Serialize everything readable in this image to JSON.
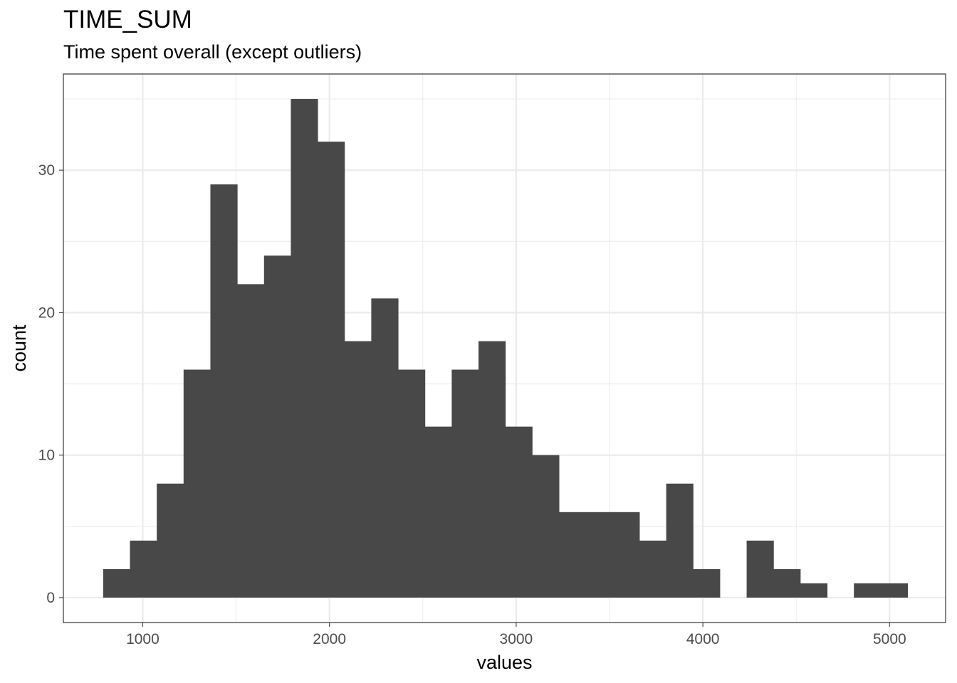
{
  "chart_data": {
    "type": "bar",
    "title": "TIME_SUM",
    "subtitle": "Time spent overall (except outliers)",
    "xlabel": "values",
    "ylabel": "count",
    "xlim": [
      575,
      5300
    ],
    "ylim": [
      -1.75,
      36.75
    ],
    "x_ticks": [
      1000,
      2000,
      3000,
      4000,
      5000
    ],
    "y_ticks": [
      0,
      10,
      20,
      30
    ],
    "grid": true,
    "bin_width": 143.6,
    "bins": [
      {
        "x0": 788,
        "x1": 931.6,
        "count": 2
      },
      {
        "x0": 931.6,
        "x1": 1075.2,
        "count": 4
      },
      {
        "x0": 1075.2,
        "x1": 1218.8,
        "count": 8
      },
      {
        "x0": 1218.8,
        "x1": 1362.4,
        "count": 16
      },
      {
        "x0": 1362.4,
        "x1": 1506,
        "count": 29
      },
      {
        "x0": 1506,
        "x1": 1649.6,
        "count": 22
      },
      {
        "x0": 1649.6,
        "x1": 1793.2,
        "count": 24
      },
      {
        "x0": 1793.2,
        "x1": 1936.8,
        "count": 35
      },
      {
        "x0": 1936.8,
        "x1": 2080.4,
        "count": 32
      },
      {
        "x0": 2080.4,
        "x1": 2224,
        "count": 18
      },
      {
        "x0": 2224,
        "x1": 2367.6,
        "count": 21
      },
      {
        "x0": 2367.6,
        "x1": 2511.2,
        "count": 16
      },
      {
        "x0": 2511.2,
        "x1": 2654.8,
        "count": 12
      },
      {
        "x0": 2654.8,
        "x1": 2798.4,
        "count": 16
      },
      {
        "x0": 2798.4,
        "x1": 2942,
        "count": 18
      },
      {
        "x0": 2942,
        "x1": 3085.6,
        "count": 12
      },
      {
        "x0": 3085.6,
        "x1": 3229.2,
        "count": 10
      },
      {
        "x0": 3229.2,
        "x1": 3372.8,
        "count": 6
      },
      {
        "x0": 3372.8,
        "x1": 3516.4,
        "count": 6
      },
      {
        "x0": 3516.4,
        "x1": 3660,
        "count": 6
      },
      {
        "x0": 3660,
        "x1": 3803.6,
        "count": 4
      },
      {
        "x0": 3803.6,
        "x1": 3947.2,
        "count": 8
      },
      {
        "x0": 3947.2,
        "x1": 4090.8,
        "count": 2
      },
      {
        "x0": 4090.8,
        "x1": 4234.4,
        "count": 0
      },
      {
        "x0": 4234.4,
        "x1": 4378,
        "count": 4
      },
      {
        "x0": 4378,
        "x1": 4521.6,
        "count": 2
      },
      {
        "x0": 4521.6,
        "x1": 4665.2,
        "count": 1
      },
      {
        "x0": 4665.2,
        "x1": 4808.8,
        "count": 0
      },
      {
        "x0": 4808.8,
        "x1": 4952.4,
        "count": 1
      },
      {
        "x0": 4952.4,
        "x1": 5096,
        "count": 1
      }
    ],
    "bar_color": "#484848",
    "grid_color": "#ebebeb",
    "tick_color": "#4d4d4d",
    "panel_border_color": "#333333"
  }
}
